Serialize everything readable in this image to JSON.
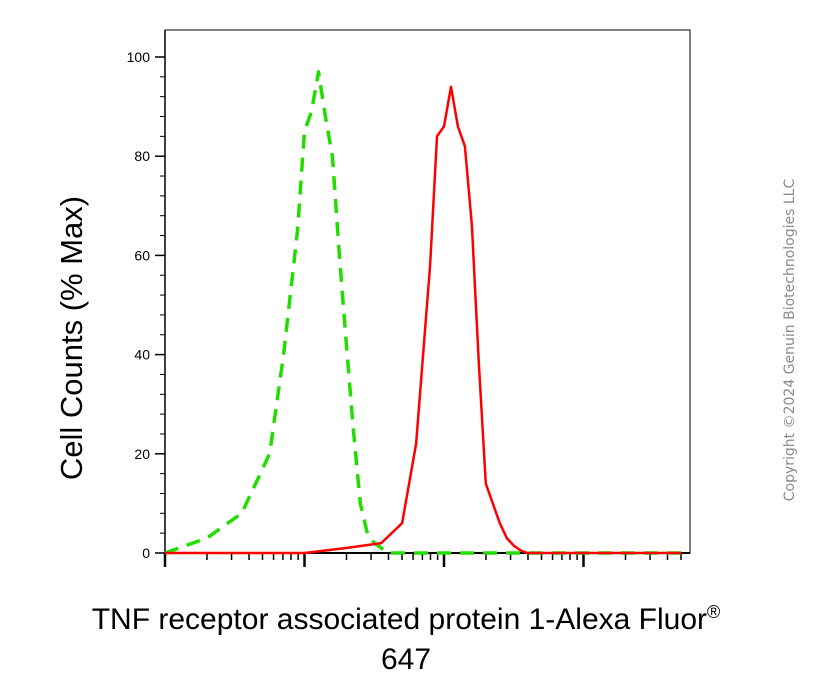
{
  "chart_data": {
    "type": "line",
    "ylabel": "Cell Counts (% Max)",
    "xlabel_main": "TNF receptor associated protein 1-Alexa Fluor",
    "xlabel_sup": "®",
    "xlabel_line2": "647",
    "ylim": [
      0,
      100
    ],
    "yticks": [
      0,
      20,
      40,
      60,
      80,
      100
    ],
    "xscale": "log",
    "xlim_decades": [
      0,
      3.7
    ],
    "series": [
      {
        "style": "dashed",
        "color": "#22dd00",
        "x": [
          0.0,
          0.3,
          0.55,
          0.75,
          0.85,
          0.95,
          1.0,
          1.05,
          1.1,
          1.15,
          1.2,
          1.25,
          1.3,
          1.35,
          1.4,
          1.45,
          1.5,
          1.55,
          1.6,
          1.7,
          1.8,
          2.0,
          2.5,
          3.7
        ],
        "y": [
          0,
          3,
          8,
          20,
          40,
          65,
          85,
          89,
          97,
          88,
          80,
          60,
          42,
          25,
          10,
          4,
          2,
          1,
          0,
          0,
          0,
          0,
          0,
          0
        ]
      },
      {
        "style": "solid",
        "color": "#ff0000",
        "x": [
          0.0,
          1.0,
          1.3,
          1.55,
          1.7,
          1.8,
          1.9,
          1.95,
          2.0,
          2.05,
          2.1,
          2.15,
          2.2,
          2.25,
          2.3,
          2.35,
          2.4,
          2.45,
          2.5,
          2.55,
          2.6,
          2.7,
          3.0,
          3.7
        ],
        "y": [
          0,
          0,
          1,
          2,
          6,
          22,
          58,
          84,
          86,
          94,
          86,
          82,
          66,
          38,
          14,
          10,
          6,
          3,
          1.5,
          0.5,
          0,
          0,
          0,
          0
        ]
      }
    ]
  },
  "watermark": "Copyright ©2024 Genuin Biotechnologies LLC"
}
